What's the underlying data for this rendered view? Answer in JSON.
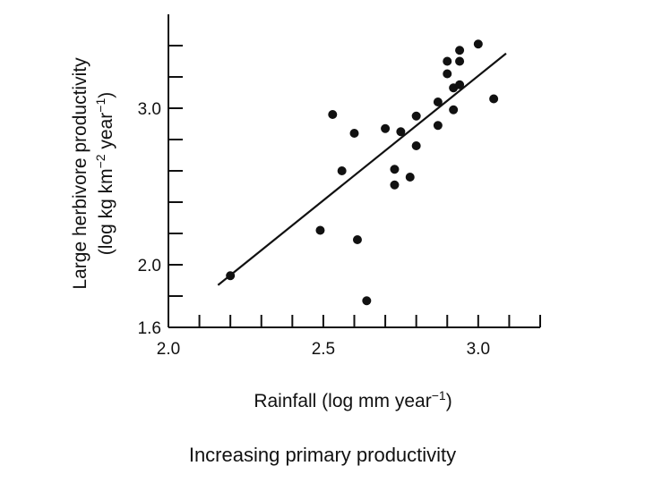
{
  "chart_data": {
    "type": "scatter",
    "title": "",
    "xlabel_main": "Rainfall (log mm year",
    "xlabel_sup": "−1",
    "xlabel_end": ")",
    "ylabel_line1": "Large herbivore productivity",
    "ylabel_line2_a": "(log kg km",
    "ylabel_line2_sup1": "−2",
    "ylabel_line2_b": " year",
    "ylabel_line2_sup2": "−1",
    "ylabel_line2_c": ")",
    "xlim": [
      2.0,
      3.2
    ],
    "ylim": [
      1.6,
      3.6
    ],
    "x_tick_labels": [
      "2.0",
      "2.5",
      "3.0"
    ],
    "x_tick_values": [
      2.0,
      2.5,
      3.0
    ],
    "x_minor_step": 0.1,
    "y_tick_labels": [
      "1.6",
      "2.0",
      "3.0"
    ],
    "y_tick_values": [
      1.6,
      2.0,
      3.0
    ],
    "y_minor_values": [
      1.8,
      2.2,
      2.4,
      2.6,
      2.8,
      3.2,
      3.4
    ],
    "points": [
      {
        "x": 2.2,
        "y": 1.93
      },
      {
        "x": 2.49,
        "y": 2.22
      },
      {
        "x": 2.53,
        "y": 2.96
      },
      {
        "x": 2.56,
        "y": 2.6
      },
      {
        "x": 2.6,
        "y": 2.84
      },
      {
        "x": 2.61,
        "y": 2.16
      },
      {
        "x": 2.64,
        "y": 1.77
      },
      {
        "x": 2.7,
        "y": 2.87
      },
      {
        "x": 2.73,
        "y": 2.51
      },
      {
        "x": 2.73,
        "y": 2.61
      },
      {
        "x": 2.75,
        "y": 2.85
      },
      {
        "x": 2.78,
        "y": 2.56
      },
      {
        "x": 2.8,
        "y": 2.76
      },
      {
        "x": 2.8,
        "y": 2.95
      },
      {
        "x": 2.87,
        "y": 3.04
      },
      {
        "x": 2.87,
        "y": 2.89
      },
      {
        "x": 2.9,
        "y": 3.3
      },
      {
        "x": 2.9,
        "y": 3.22
      },
      {
        "x": 2.92,
        "y": 2.99
      },
      {
        "x": 2.92,
        "y": 3.13
      },
      {
        "x": 2.94,
        "y": 3.3
      },
      {
        "x": 2.94,
        "y": 3.37
      },
      {
        "x": 2.94,
        "y": 3.15
      },
      {
        "x": 3.0,
        "y": 3.41
      },
      {
        "x": 3.05,
        "y": 3.06
      }
    ],
    "trend_line": {
      "x": [
        2.16,
        3.09
      ],
      "y": [
        1.87,
        3.35
      ]
    }
  },
  "caption": "Increasing primary productivity",
  "colors": {
    "ink": "#111111",
    "background": "#ffffff"
  }
}
